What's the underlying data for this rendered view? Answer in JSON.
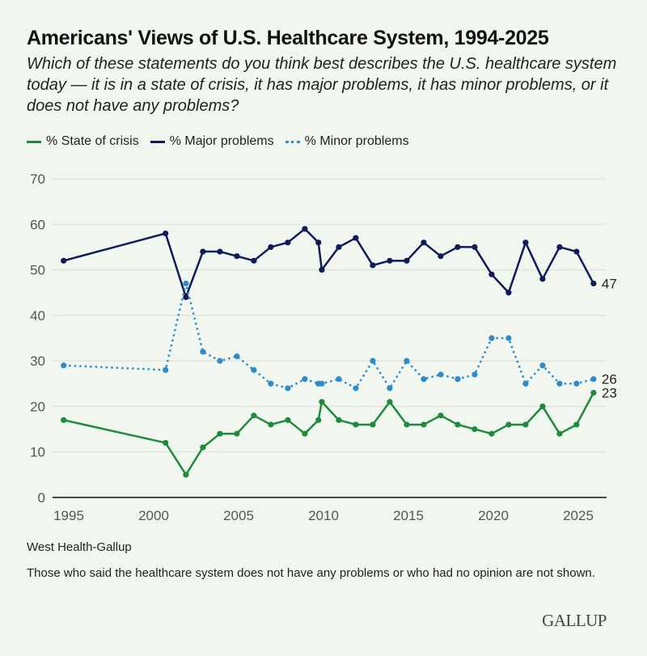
{
  "chart_data": {
    "type": "line",
    "title": "Americans' Views of U.S. Healthcare System, 1994-2025",
    "subtitle": "Which of these statements do you think best describes the U.S. healthcare system today — it is in a state of crisis, it has major problems, it has minor problems, or it does not have any problems?",
    "xlabel": "",
    "ylabel": "",
    "xlim": [
      1994,
      2026.5
    ],
    "ylim": [
      0,
      70
    ],
    "x_ticks": [
      "1995",
      "2000",
      "2005",
      "2010",
      "2015",
      "2020",
      "2025"
    ],
    "y_ticks": [
      "0",
      "10",
      "20",
      "30",
      "40",
      "50",
      "60",
      "70"
    ],
    "grid": "horizontal",
    "legend_position": "top-left",
    "x": [
      1994.7,
      2000.7,
      2001.9,
      2002.9,
      2003.9,
      2004.9,
      2005.9,
      2006.9,
      2007.9,
      2008.9,
      2009.7,
      2009.9,
      2010.9,
      2011.9,
      2012.9,
      2013.9,
      2014.9,
      2015.9,
      2016.9,
      2017.9,
      2018.9,
      2019.9,
      2020.9,
      2021.9,
      2022.9,
      2023.9,
      2024.9,
      2025.9
    ],
    "series": [
      {
        "name": "% State of crisis",
        "color": "#1d8a3e",
        "style": "solid",
        "end_label": "23",
        "values": [
          17,
          12,
          5,
          11,
          14,
          14,
          18,
          16,
          17,
          14,
          17,
          21,
          17,
          16,
          16,
          21,
          16,
          16,
          18,
          16,
          15,
          14,
          16,
          16,
          20,
          14,
          16,
          23
        ]
      },
      {
        "name": "% Major problems",
        "color": "#0f1a5a",
        "style": "solid",
        "end_label": "47",
        "values": [
          52,
          58,
          44,
          54,
          54,
          53,
          52,
          55,
          56,
          59,
          56,
          50,
          55,
          57,
          51,
          52,
          52,
          56,
          53,
          55,
          55,
          49,
          45,
          56,
          48,
          55,
          54,
          47
        ]
      },
      {
        "name": "% Minor problems",
        "color": "#2e8ccb",
        "style": "dotted",
        "end_label": "26",
        "values": [
          29,
          28,
          47,
          32,
          30,
          31,
          28,
          25,
          24,
          26,
          25,
          25,
          26,
          24,
          30,
          24,
          30,
          26,
          27,
          26,
          27,
          35,
          35,
          25,
          29,
          25,
          25,
          26
        ]
      }
    ]
  },
  "footer": {
    "source": "West Health-Gallup",
    "note": "Those who said the healthcare system does not have any problems or who had no opinion are not shown.",
    "logo": "GALLUP"
  }
}
